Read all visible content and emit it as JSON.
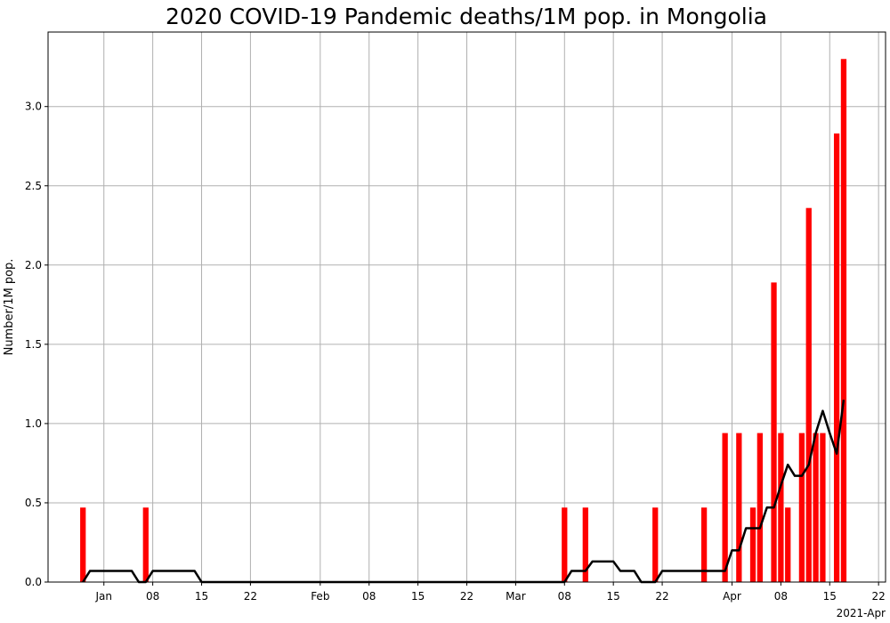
{
  "chart_data": {
    "type": "bar",
    "title": "2020 COVID-19 Pandemic deaths/1M pop. in Mongolia",
    "xlabel": "",
    "ylabel": "Number/1M pop.",
    "x_offset_label": "2021-Apr",
    "grid": true,
    "colors": {
      "bars": "#ff0000",
      "line": "#000000",
      "grid": "#b0b0b0"
    },
    "x_range": [
      "2020-12-24",
      "2021-04-23"
    ],
    "ylim": [
      0,
      3.47
    ],
    "y_ticks": [
      0.0,
      0.5,
      1.0,
      1.5,
      2.0,
      2.5,
      3.0
    ],
    "y_tick_labels": [
      "0.0",
      "0.5",
      "1.0",
      "1.5",
      "2.0",
      "2.5",
      "3.0"
    ],
    "x_ticks": [
      {
        "date": "2021-01-01",
        "label": "Jan"
      },
      {
        "date": "2021-01-08",
        "label": "08"
      },
      {
        "date": "2021-01-15",
        "label": "15"
      },
      {
        "date": "2021-01-22",
        "label": "22"
      },
      {
        "date": "2021-02-01",
        "label": "Feb"
      },
      {
        "date": "2021-02-08",
        "label": "08"
      },
      {
        "date": "2021-02-15",
        "label": "15"
      },
      {
        "date": "2021-02-22",
        "label": "22"
      },
      {
        "date": "2021-03-01",
        "label": "Mar"
      },
      {
        "date": "2021-03-08",
        "label": "08"
      },
      {
        "date": "2021-03-15",
        "label": "15"
      },
      {
        "date": "2021-03-22",
        "label": "22"
      },
      {
        "date": "2021-04-01",
        "label": "Apr"
      },
      {
        "date": "2021-04-08",
        "label": "08"
      },
      {
        "date": "2021-04-15",
        "label": "15"
      },
      {
        "date": "2021-04-22",
        "label": "22"
      }
    ],
    "series": [
      {
        "type": "bar",
        "points": [
          {
            "date": "2020-12-29",
            "value": 0.47
          },
          {
            "date": "2021-01-07",
            "value": 0.47
          },
          {
            "date": "2021-03-08",
            "value": 0.47
          },
          {
            "date": "2021-03-11",
            "value": 0.47
          },
          {
            "date": "2021-03-21",
            "value": 0.47
          },
          {
            "date": "2021-03-28",
            "value": 0.47
          },
          {
            "date": "2021-03-31",
            "value": 0.94
          },
          {
            "date": "2021-04-02",
            "value": 0.94
          },
          {
            "date": "2021-04-04",
            "value": 0.47
          },
          {
            "date": "2021-04-05",
            "value": 0.94
          },
          {
            "date": "2021-04-07",
            "value": 1.89
          },
          {
            "date": "2021-04-08",
            "value": 0.94
          },
          {
            "date": "2021-04-09",
            "value": 0.47
          },
          {
            "date": "2021-04-11",
            "value": 0.94
          },
          {
            "date": "2021-04-12",
            "value": 2.36
          },
          {
            "date": "2021-04-13",
            "value": 0.94
          },
          {
            "date": "2021-04-14",
            "value": 0.94
          },
          {
            "date": "2021-04-16",
            "value": 2.83
          },
          {
            "date": "2021-04-17",
            "value": 3.3
          }
        ]
      },
      {
        "type": "line",
        "points": [
          {
            "date": "2020-12-29",
            "value": 0.0
          },
          {
            "date": "2020-12-30",
            "value": 0.07
          },
          {
            "date": "2021-01-05",
            "value": 0.07
          },
          {
            "date": "2021-01-06",
            "value": 0.0
          },
          {
            "date": "2021-01-07",
            "value": 0.0
          },
          {
            "date": "2021-01-08",
            "value": 0.07
          },
          {
            "date": "2021-01-14",
            "value": 0.07
          },
          {
            "date": "2021-01-15",
            "value": 0.0
          },
          {
            "date": "2021-03-08",
            "value": 0.0
          },
          {
            "date": "2021-03-09",
            "value": 0.07
          },
          {
            "date": "2021-03-11",
            "value": 0.07
          },
          {
            "date": "2021-03-12",
            "value": 0.13
          },
          {
            "date": "2021-03-15",
            "value": 0.13
          },
          {
            "date": "2021-03-16",
            "value": 0.07
          },
          {
            "date": "2021-03-18",
            "value": 0.07
          },
          {
            "date": "2021-03-19",
            "value": 0.0
          },
          {
            "date": "2021-03-21",
            "value": 0.0
          },
          {
            "date": "2021-03-22",
            "value": 0.07
          },
          {
            "date": "2021-03-31",
            "value": 0.07
          },
          {
            "date": "2021-04-01",
            "value": 0.2
          },
          {
            "date": "2021-04-02",
            "value": 0.2
          },
          {
            "date": "2021-04-03",
            "value": 0.34
          },
          {
            "date": "2021-04-05",
            "value": 0.34
          },
          {
            "date": "2021-04-06",
            "value": 0.47
          },
          {
            "date": "2021-04-07",
            "value": 0.47
          },
          {
            "date": "2021-04-08",
            "value": 0.61
          },
          {
            "date": "2021-04-09",
            "value": 0.74
          },
          {
            "date": "2021-04-10",
            "value": 0.67
          },
          {
            "date": "2021-04-11",
            "value": 0.67
          },
          {
            "date": "2021-04-12",
            "value": 0.74
          },
          {
            "date": "2021-04-13",
            "value": 0.94
          },
          {
            "date": "2021-04-14",
            "value": 1.08
          },
          {
            "date": "2021-04-15",
            "value": 0.94
          },
          {
            "date": "2021-04-16",
            "value": 0.81
          },
          {
            "date": "2021-04-17",
            "value": 1.15
          }
        ]
      }
    ]
  }
}
